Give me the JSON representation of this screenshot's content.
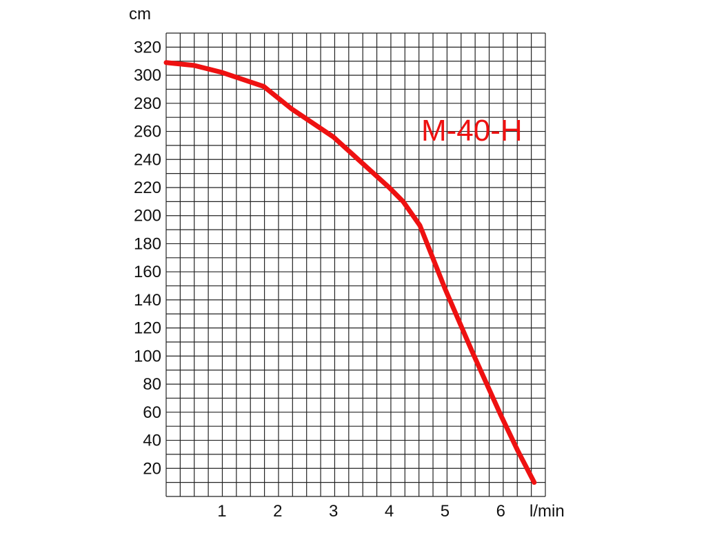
{
  "chart_data": {
    "type": "line",
    "title": "",
    "xlabel": "l/min",
    "ylabel": "cm",
    "xlim": [
      0,
      6.8
    ],
    "ylim": [
      0,
      330
    ],
    "x_ticks": [
      1,
      2,
      3,
      4,
      5,
      6
    ],
    "y_ticks": [
      20,
      40,
      60,
      80,
      100,
      120,
      140,
      160,
      180,
      200,
      220,
      240,
      260,
      280,
      300,
      320
    ],
    "grid": true,
    "series": [
      {
        "name": "M-40-H",
        "color": "#ee1111",
        "x": [
          0,
          0.5,
          1.0,
          1.75,
          2.25,
          3.0,
          3.5,
          4.0,
          4.25,
          4.55,
          5.0,
          5.5,
          6.0,
          6.3,
          6.6
        ],
        "y": [
          309,
          307,
          302,
          292,
          276,
          256,
          238,
          220,
          210,
          193,
          148,
          102,
          58,
          33,
          10
        ]
      }
    ]
  }
}
